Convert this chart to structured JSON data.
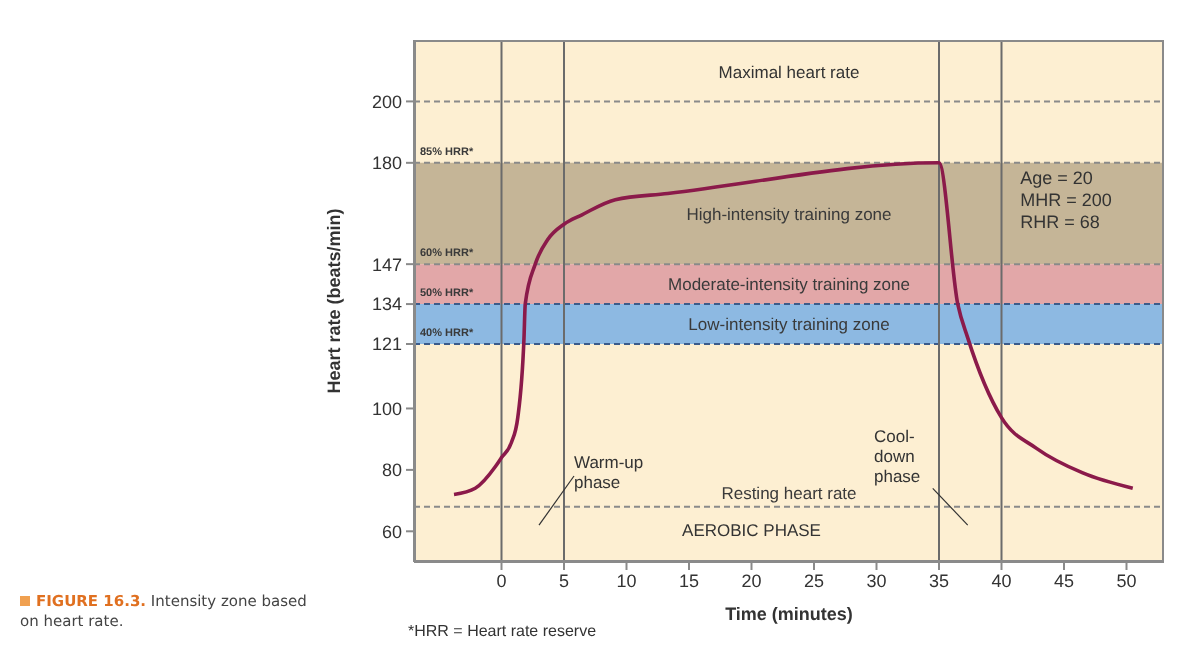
{
  "chart_data": {
    "type": "line",
    "xlabel": "Time (minutes)",
    "ylabel": "Heart rate (beats/min)",
    "x": [
      -3.8,
      -2.1,
      -0.5,
      0,
      0.8,
      1.3,
      1.8,
      1.9,
      2.7,
      3.7,
      5,
      6.4,
      9.1,
      13.3,
      35,
      36.5,
      37.3,
      40,
      42.8,
      46.5,
      50.5
    ],
    "series": [
      {
        "color": "#8b1a4a",
        "values": [
          72,
          74,
          81,
          84,
          89,
          97,
          123,
          134,
          147,
          155,
          160,
          163,
          168,
          170,
          180,
          134,
          123,
          97,
          87,
          79,
          74
        ]
      }
    ],
    "xlim": [
      -7,
      53
    ],
    "ylim": [
      50,
      220
    ],
    "xticks": [
      0,
      5,
      10,
      15,
      20,
      25,
      30,
      35,
      40,
      45,
      50
    ],
    "yticks": [
      60,
      80,
      100,
      121,
      134,
      147,
      180,
      200
    ],
    "marker": "none",
    "bands": [
      {
        "axis": "y",
        "from": 147,
        "to": 180,
        "label": "High-intensity training zone",
        "color": "#c5b597"
      },
      {
        "axis": "y",
        "from": 134,
        "to": 147,
        "label": "Moderate-intensity training zone",
        "color": "#e2a7a8"
      },
      {
        "axis": "y",
        "from": 121,
        "to": 134,
        "label": "Low-intensity training zone",
        "color": "#8db9e2"
      }
    ],
    "ref_lines": [
      {
        "axis": "y",
        "value": 200,
        "label": null,
        "color": "#8a8a8a",
        "line_style": "dashed"
      },
      {
        "axis": "y",
        "value": 180,
        "label": "85% HRR*",
        "color": "#8a8a8a",
        "line_style": "dashed"
      },
      {
        "axis": "y",
        "value": 147,
        "label": "60% HRR*",
        "color": "#8a8a8a",
        "line_style": "dashed"
      },
      {
        "axis": "y",
        "value": 134,
        "label": "50% HRR*",
        "color": "#3b5b8a",
        "line_style": "dashed"
      },
      {
        "axis": "y",
        "value": 121,
        "label": "40% HRR*",
        "color": "#3b5b8a",
        "line_style": "dashed"
      },
      {
        "axis": "y",
        "value": 68,
        "label": "Resting heart rate",
        "color": "#8a8a8a",
        "line_style": "dashed"
      },
      {
        "axis": "x",
        "value": 0,
        "label": null,
        "color": "#6b6b6b",
        "line_style": "solid"
      },
      {
        "axis": "x",
        "value": 5,
        "label": null,
        "color": "#6b6b6b",
        "line_style": "solid"
      },
      {
        "axis": "x",
        "value": 35,
        "label": null,
        "color": "#6b6b6b",
        "line_style": "solid"
      },
      {
        "axis": "x",
        "value": 40,
        "label": null,
        "color": "#6b6b6b",
        "line_style": "solid"
      }
    ],
    "annotations": [
      "Age = 20\nMHR = 200\nRHR = 68",
      "Warm-up\nphase",
      "Cool-\ndown\nphase",
      "AEROBIC PHASE",
      "*HRR = Heart rate reserve",
      "FIGURE 16.3.",
      "Intensity zone based on heart rate.",
      "Maximal heart rate"
    ]
  }
}
